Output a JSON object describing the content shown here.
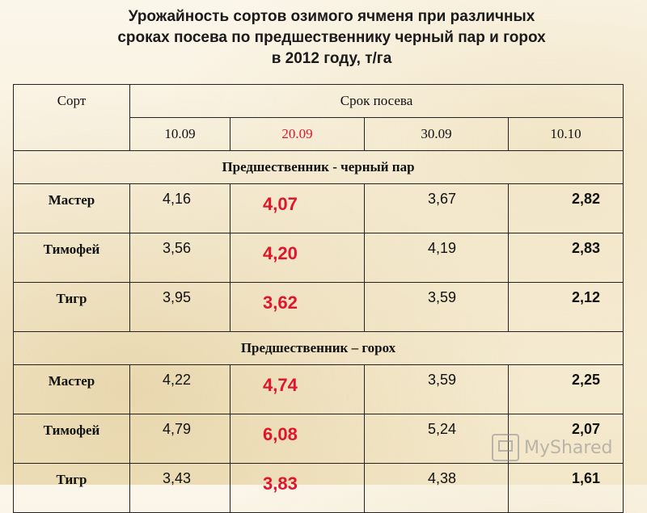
{
  "title": {
    "line1": "Урожайность сортов озимого ячменя при различных",
    "line2": "сроках посева по предшественнику черный пар и горох",
    "line3": "в 2012 году, т/га"
  },
  "table": {
    "col_variety": "Сорт",
    "col_sowing": "Срок посева",
    "dates": [
      "10.09",
      "20.09",
      "30.09",
      "10.10"
    ],
    "sections": [
      {
        "label": "Предшественник - черный пар",
        "rows": [
          {
            "variety": "Мастер",
            "values": [
              "4,16",
              "4,07",
              "3,67",
              "2,82"
            ]
          },
          {
            "variety": "Тимофей",
            "values": [
              "3,56",
              "4,20",
              "4,19",
              "2,83"
            ]
          },
          {
            "variety": "Тигр",
            "values": [
              "3,95",
              "3,62",
              "3,59",
              "2,12"
            ]
          }
        ]
      },
      {
        "label": "Предшественник – горох",
        "rows": [
          {
            "variety": "Мастер",
            "values": [
              "4,22",
              "4,74",
              "3,59",
              "2,25"
            ]
          },
          {
            "variety": "Тимофей",
            "values": [
              "4,79",
              "6,08",
              "5,24",
              "2,07"
            ]
          },
          {
            "variety": "Тигр",
            "values": [
              "3,43",
              "3,83",
              "4,38",
              "1,61"
            ]
          }
        ]
      }
    ]
  },
  "watermark": {
    "text": "MyShared",
    "icon": "presentation-board-icon"
  },
  "colors": {
    "highlight": "#e0142a"
  }
}
